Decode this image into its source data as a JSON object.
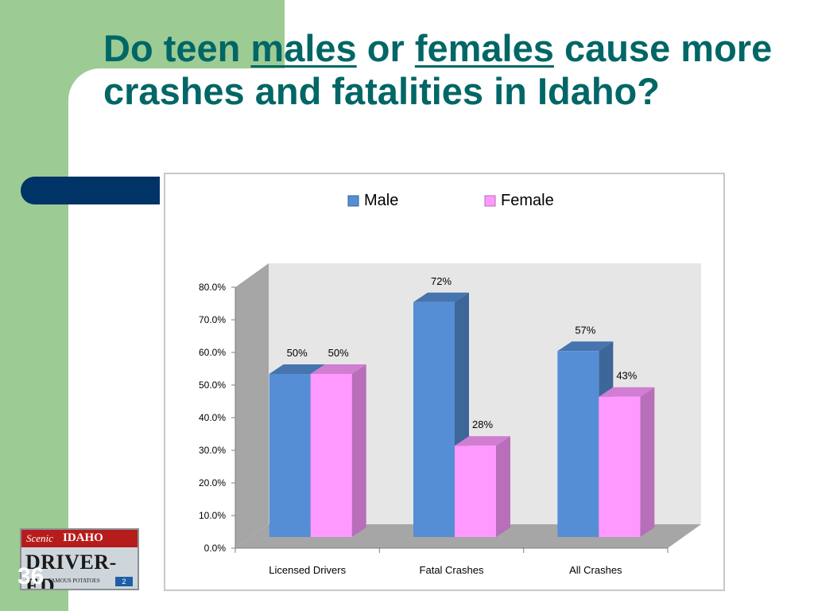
{
  "slide": {
    "title_parts": [
      "Do teen ",
      "males",
      " or ",
      "females",
      " cause more crashes and fatalities in Idaho?"
    ],
    "slide_number": "36"
  },
  "logo": {
    "script_text": "Scenic",
    "state_text": "IDAHO",
    "main_text": "DRIVER-ED",
    "bottom_text": "FAMOUS POTATOES",
    "sticker_text": "2"
  },
  "chart_data": {
    "type": "bar",
    "title": "",
    "xlabel": "",
    "ylabel": "",
    "categories": [
      "Licensed Drivers",
      "Fatal Crashes",
      "All Crashes"
    ],
    "series": [
      {
        "name": "Male",
        "values": [
          50,
          72,
          57
        ],
        "labels": [
          "50%",
          "72%",
          "57%"
        ],
        "color": "#558ed5"
      },
      {
        "name": "Female",
        "values": [
          50,
          28,
          43
        ],
        "labels": [
          "50%",
          "28%",
          "43%"
        ],
        "color": "#ff99ff"
      }
    ],
    "ylim": [
      0,
      80
    ],
    "ytick_values": [
      0,
      10,
      20,
      30,
      40,
      50,
      60,
      70,
      80
    ],
    "ytick_labels": [
      "0.0%",
      "10.0%",
      "20.0%",
      "30.0%",
      "40.0%",
      "50.0%",
      "60.0%",
      "70.0%",
      "80.0%"
    ],
    "legend_position": "top",
    "grid": false,
    "three_d": true
  }
}
